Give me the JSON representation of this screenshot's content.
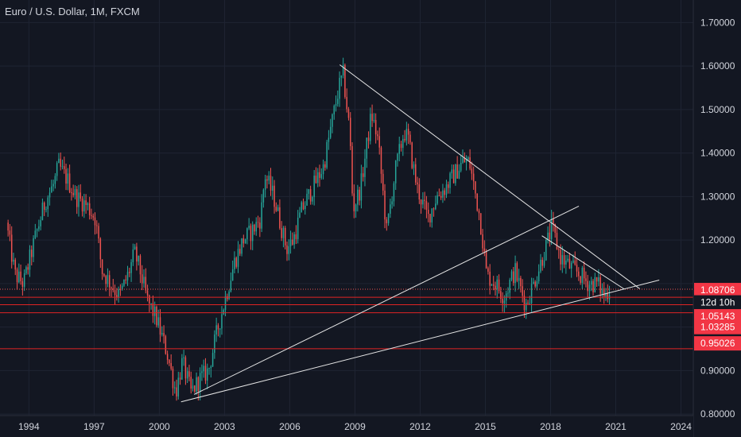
{
  "header": {
    "title": "Euro / U.S. Dollar, 1M, FXCM"
  },
  "colors": {
    "background": "#131722",
    "grid": "#1f2433",
    "axis_text": "#d1d4dc",
    "up_candle": "#26a69a",
    "down_candle": "#ef5350",
    "trendline": "#e6e6e6",
    "level_line": "#e02424",
    "price_line": "#ef5350",
    "badge_red": "#f23645",
    "badge_dark": "#131722"
  },
  "chart_data": {
    "type": "candlestick",
    "title": "Euro / U.S. Dollar, 1M, FXCM",
    "x_range": [
      1993.0,
      2024.2
    ],
    "y_range": [
      0.76,
      1.73
    ],
    "grid": true,
    "y_ticks": [
      {
        "value": 1.7,
        "label": "1.70000"
      },
      {
        "value": 1.6,
        "label": "1.60000"
      },
      {
        "value": 1.5,
        "label": "1.50000"
      },
      {
        "value": 1.4,
        "label": "1.40000"
      },
      {
        "value": 1.3,
        "label": "1.30000"
      },
      {
        "value": 1.2,
        "label": "1.20000"
      },
      {
        "value": 0.9,
        "label": "0.90000"
      },
      {
        "value": 0.8,
        "label": "0.80000"
      }
    ],
    "x_ticks": [
      {
        "value": 1994,
        "label": "1994"
      },
      {
        "value": 1997,
        "label": "1997"
      },
      {
        "value": 2000,
        "label": "2000"
      },
      {
        "value": 2003,
        "label": "2003"
      },
      {
        "value": 2006,
        "label": "2006"
      },
      {
        "value": 2009,
        "label": "2009"
      },
      {
        "value": 2012,
        "label": "2012"
      },
      {
        "value": 2015,
        "label": "2015"
      },
      {
        "value": 2018,
        "label": "2018"
      },
      {
        "value": 2021,
        "label": "2021"
      },
      {
        "value": 2024,
        "label": "2024"
      }
    ],
    "price_path": [
      [
        1993.0,
        1.24
      ],
      [
        1993.4,
        1.12
      ],
      [
        1993.8,
        1.1
      ],
      [
        1994.3,
        1.2
      ],
      [
        1994.8,
        1.29
      ],
      [
        1995.2,
        1.33
      ],
      [
        1995.4,
        1.37
      ],
      [
        1995.8,
        1.34
      ],
      [
        1996.2,
        1.3
      ],
      [
        1996.7,
        1.28
      ],
      [
        1997.1,
        1.25
      ],
      [
        1997.4,
        1.13
      ],
      [
        1997.8,
        1.1
      ],
      [
        1998.2,
        1.07
      ],
      [
        1998.6,
        1.12
      ],
      [
        1998.9,
        1.17
      ],
      [
        1999.1,
        1.14
      ],
      [
        1999.5,
        1.06
      ],
      [
        1999.9,
        1.02
      ],
      [
        2000.4,
        0.94
      ],
      [
        2000.8,
        0.85
      ],
      [
        2001.1,
        0.92
      ],
      [
        2001.5,
        0.85
      ],
      [
        2001.9,
        0.88
      ],
      [
        2002.3,
        0.9
      ],
      [
        2002.7,
        0.99
      ],
      [
        2003.1,
        1.07
      ],
      [
        2003.5,
        1.15
      ],
      [
        2003.9,
        1.2
      ],
      [
        2004.3,
        1.22
      ],
      [
        2004.7,
        1.25
      ],
      [
        2004.9,
        1.35
      ],
      [
        2005.3,
        1.3
      ],
      [
        2005.9,
        1.18
      ],
      [
        2006.2,
        1.2
      ],
      [
        2006.6,
        1.27
      ],
      [
        2007.1,
        1.32
      ],
      [
        2007.6,
        1.37
      ],
      [
        2007.9,
        1.45
      ],
      [
        2008.3,
        1.55
      ],
      [
        2008.5,
        1.58
      ],
      [
        2008.8,
        1.45
      ],
      [
        2008.95,
        1.27
      ],
      [
        2009.3,
        1.32
      ],
      [
        2009.8,
        1.49
      ],
      [
        2010.1,
        1.43
      ],
      [
        2010.5,
        1.22
      ],
      [
        2010.9,
        1.36
      ],
      [
        2011.3,
        1.45
      ],
      [
        2011.5,
        1.43
      ],
      [
        2011.9,
        1.32
      ],
      [
        2012.4,
        1.25
      ],
      [
        2012.8,
        1.3
      ],
      [
        2013.2,
        1.32
      ],
      [
        2013.6,
        1.35
      ],
      [
        2014.0,
        1.38
      ],
      [
        2014.3,
        1.38
      ],
      [
        2014.8,
        1.25
      ],
      [
        2015.1,
        1.12
      ],
      [
        2015.5,
        1.1
      ],
      [
        2015.9,
        1.07
      ],
      [
        2016.4,
        1.13
      ],
      [
        2016.9,
        1.05
      ],
      [
        2017.4,
        1.12
      ],
      [
        2017.8,
        1.18
      ],
      [
        2018.1,
        1.23
      ],
      [
        2018.5,
        1.16
      ],
      [
        2018.9,
        1.14
      ],
      [
        2019.4,
        1.12
      ],
      [
        2019.8,
        1.1
      ],
      [
        2020.2,
        1.1
      ],
      [
        2020.55,
        1.07
      ],
      [
        2020.7,
        1.087
      ]
    ],
    "trendlines": [
      {
        "from": [
          2008.3,
          1.603
        ],
        "to": [
          2022.1,
          1.088
        ]
      },
      {
        "from": [
          2001.0,
          0.828
        ],
        "to": [
          2023.0,
          1.108
        ]
      },
      {
        "from": [
          2001.6,
          0.845
        ],
        "to": [
          2019.3,
          1.278
        ]
      },
      {
        "from": [
          2017.6,
          1.21
        ],
        "to": [
          2021.4,
          1.087
        ]
      }
    ],
    "horizontal_levels": [
      {
        "value": 1.087,
        "style": "dotted"
      },
      {
        "value": 1.0685,
        "style": "solid"
      },
      {
        "value": 1.0514,
        "style": "solid"
      },
      {
        "value": 1.0329,
        "style": "solid"
      },
      {
        "value": 0.9503,
        "style": "solid"
      }
    ],
    "price_badges": [
      {
        "value": 1.0851,
        "label": "1.08706",
        "style": "red"
      },
      {
        "value": 1.0567,
        "label": "12d 10h",
        "style": "dark"
      },
      {
        "value": 1.0248,
        "label": "1.05143",
        "style": "red"
      },
      {
        "value": 0.9999,
        "label": "1.03285",
        "style": "red"
      },
      {
        "value": 0.9625,
        "label": "0.95026",
        "style": "red"
      }
    ]
  }
}
